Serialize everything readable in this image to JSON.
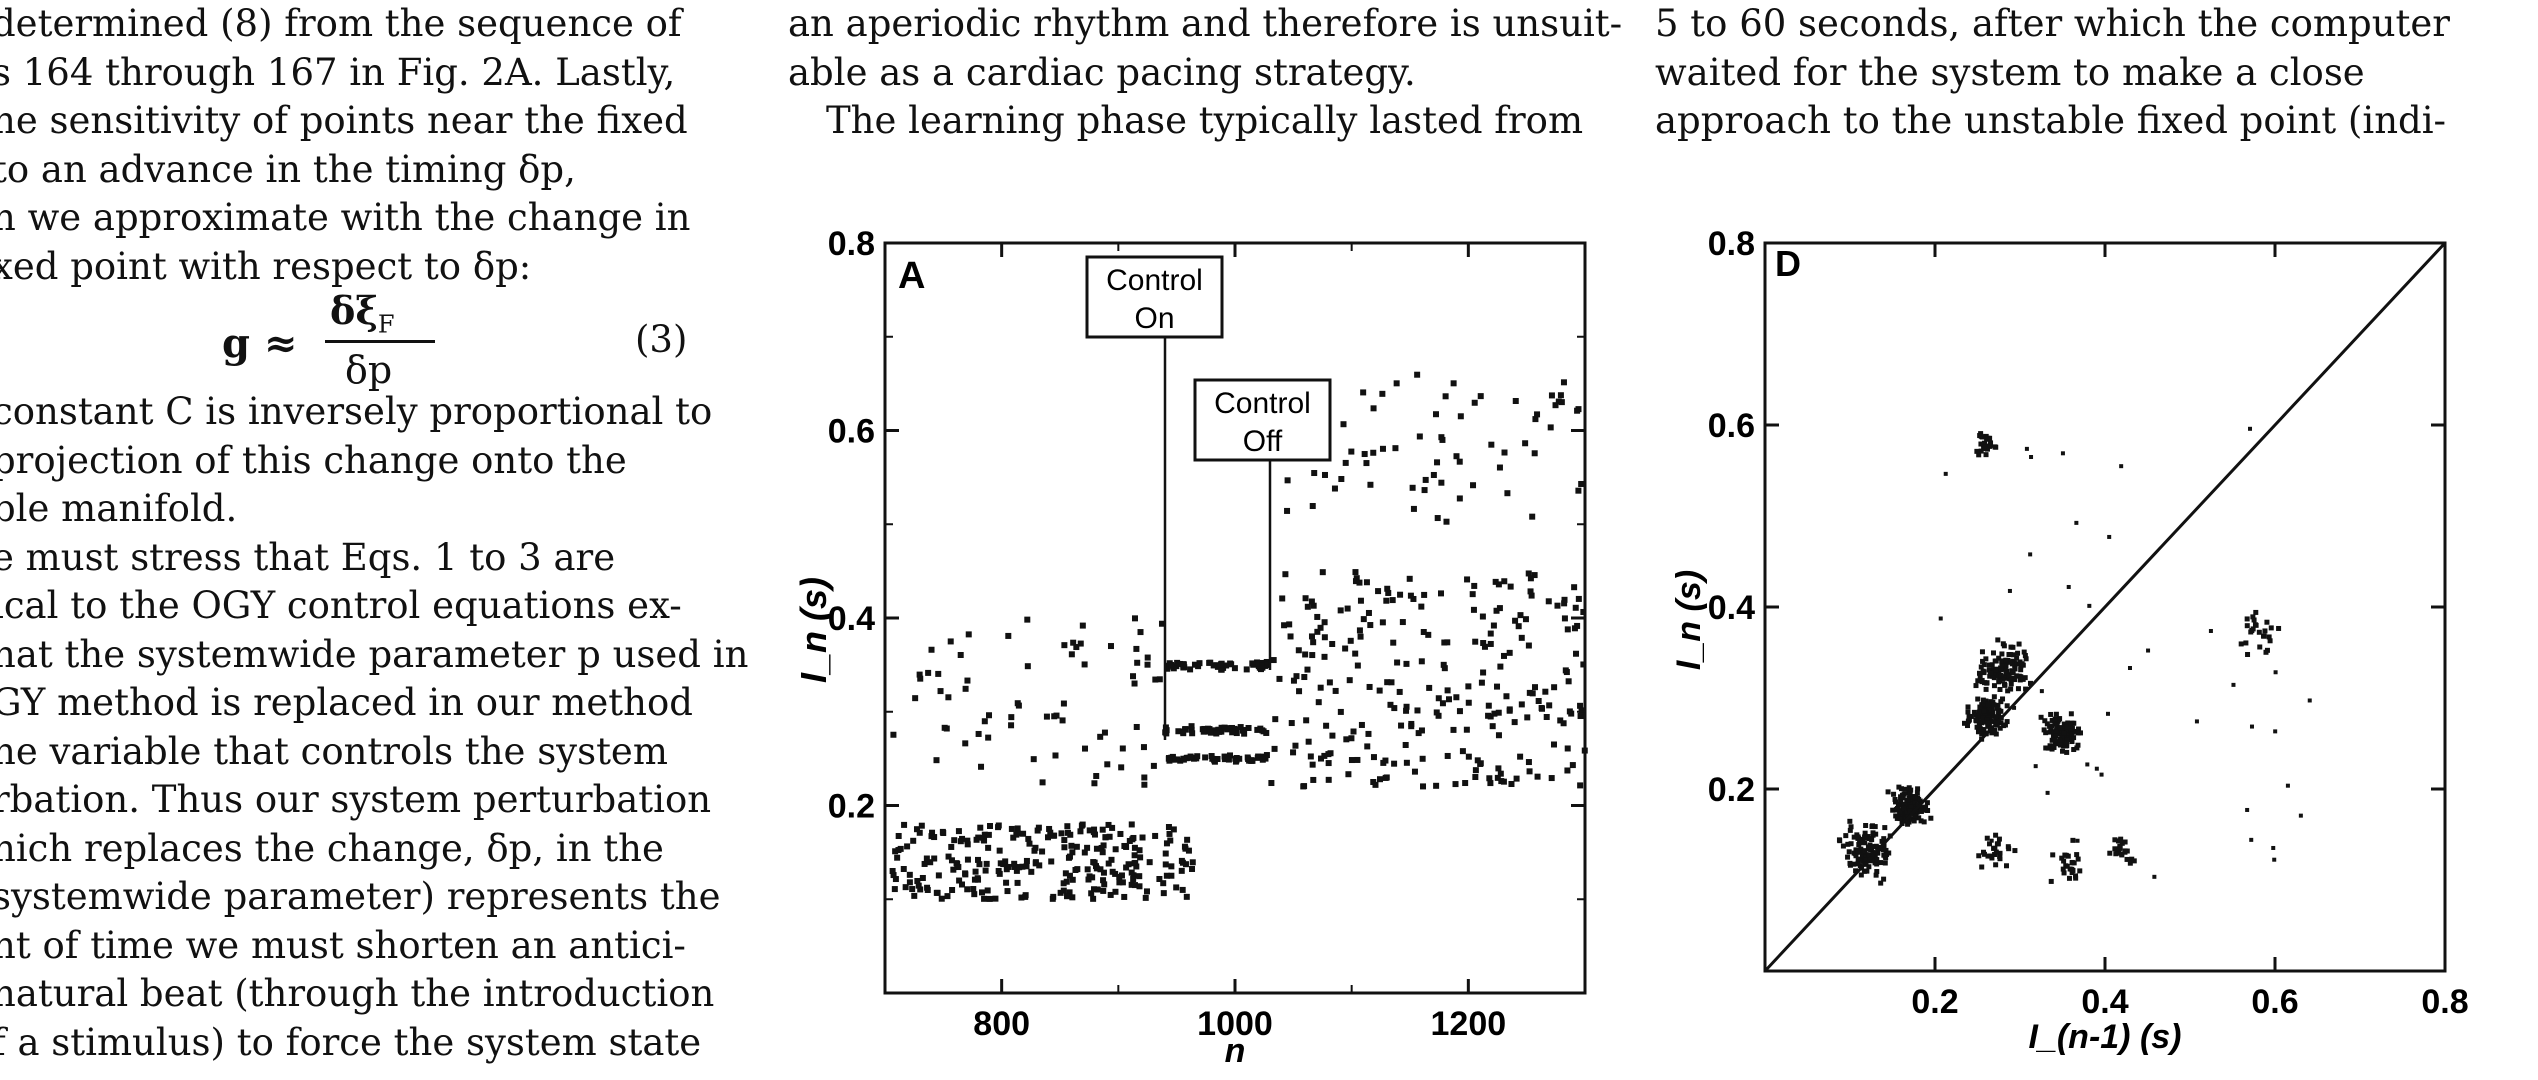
{
  "left_column": {
    "lines": [
      "determined (8) from the sequence of",
      "s 164 through 167 in Fig. 2A. Lastly,",
      "he sensitivity of points near the fixed",
      "to an advance in the timing δp,",
      "n we approximate with the change in",
      "xed point with respect to δp:",
      "",
      "",
      "constant C is inversely proportional to",
      "projection of this change onto the",
      "ble manifold.",
      "e must stress that Eqs. 1 to 3 are",
      "ical to the OGY control equations ex-",
      "hat the systemwide parameter p used in",
      "GY method is replaced in our method",
      "he variable that controls the system",
      "rbation. Thus our system perturbation",
      "hich replaces the change, δp, in the",
      "systemwide parameter) represents the",
      "nt of time we must shorten an antici-",
      "natural beat (through the introduction",
      "f a stimulus) to force the system state"
    ],
    "equation": {
      "lhs": "g ≈",
      "numerator": "δξ",
      "numerator_sub": "F",
      "denominator": "δp",
      "number": "(3)"
    }
  },
  "middle_column": {
    "lines": [
      "an aperiodic rhythm and therefore is unsuit-",
      "able as a cardiac pacing strategy.",
      "The learning phase typically lasted from"
    ]
  },
  "right_column": {
    "lines": [
      "5 to 60 seconds, after which the computer",
      "waited for the system to make a close",
      "approach to the unstable fixed point (indi-"
    ]
  },
  "chart_data": [
    {
      "type": "scatter",
      "panel_label": "A",
      "xlabel": "n",
      "ylabel": "I_n (s)",
      "xlim": [
        700,
        1300
      ],
      "ylim": [
        0,
        0.8
      ],
      "xticks": [
        "800",
        "1000",
        "1200"
      ],
      "yticks": [
        "0.2",
        "0.4",
        "0.6",
        "0.8"
      ],
      "annotations": [
        {
          "text": [
            "Control",
            "On"
          ],
          "at_x": 940
        },
        {
          "text": [
            "Control",
            "Off"
          ],
          "at_x": 1030
        }
      ],
      "regions": [
        {
          "x": [
            705,
            965
          ],
          "y": [
            0.1,
            0.18
          ],
          "density": "dense"
        },
        {
          "x": [
            705,
            940
          ],
          "y": [
            0.22,
            0.4
          ],
          "density": "sparse"
        },
        {
          "x": [
            940,
            1030
          ],
          "y": [
            0.24,
            0.37
          ],
          "density": "banded",
          "bands": [
            0.25,
            0.28,
            0.35
          ]
        },
        {
          "x": [
            1030,
            1300
          ],
          "y": [
            0.22,
            0.45
          ],
          "density": "dense"
        },
        {
          "x": [
            1040,
            1300
          ],
          "y": [
            0.5,
            0.66
          ],
          "density": "sparse"
        }
      ]
    },
    {
      "type": "scatter",
      "panel_label": "D",
      "xlabel": "I_(n-1) (s)",
      "ylabel": "I_n (s)",
      "xlim": [
        0,
        0.8
      ],
      "ylim": [
        0,
        0.8
      ],
      "xticks": [
        "0.2",
        "0.4",
        "0.6",
        "0.8"
      ],
      "yticks": [
        "0.2",
        "0.4",
        "0.6",
        "0.8"
      ],
      "identity_line": true,
      "clusters": [
        {
          "x": 0.12,
          "y": 0.13,
          "spread": 0.04,
          "density": "dense"
        },
        {
          "x": 0.17,
          "y": 0.18,
          "spread": 0.03,
          "density": "dense"
        },
        {
          "x": 0.28,
          "y": 0.33,
          "spread": 0.04,
          "density": "dense"
        },
        {
          "x": 0.26,
          "y": 0.28,
          "spread": 0.03,
          "density": "dense"
        },
        {
          "x": 0.35,
          "y": 0.26,
          "spread": 0.03,
          "density": "dense"
        },
        {
          "x": 0.26,
          "y": 0.58,
          "spread": 0.02,
          "density": "sparse"
        },
        {
          "x": 0.58,
          "y": 0.37,
          "spread": 0.03,
          "density": "sparse"
        },
        {
          "x": 0.27,
          "y": 0.13,
          "spread": 0.03,
          "density": "sparse"
        },
        {
          "x": 0.36,
          "y": 0.12,
          "spread": 0.03,
          "density": "sparse"
        },
        {
          "x": 0.42,
          "y": 0.13,
          "spread": 0.02,
          "density": "sparse"
        }
      ]
    }
  ]
}
